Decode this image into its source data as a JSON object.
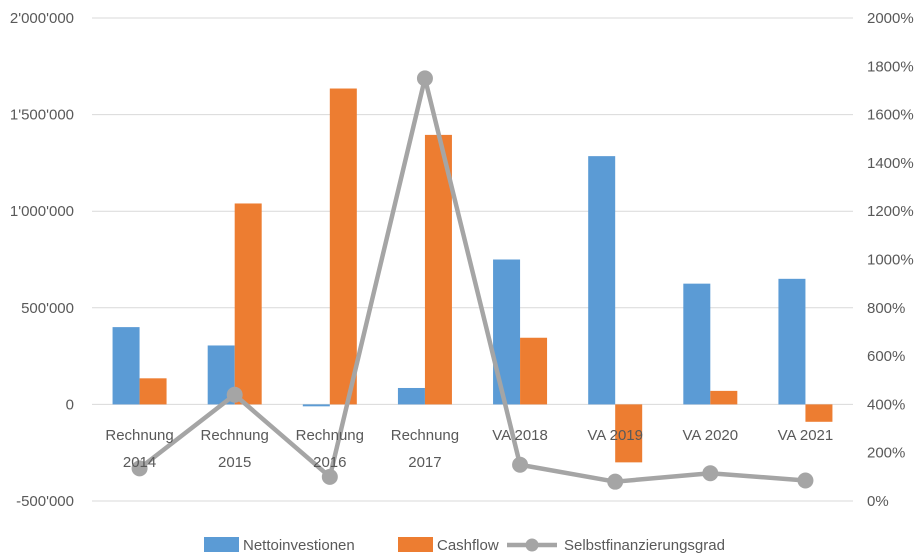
{
  "chart_data": {
    "type": "bar",
    "categories": [
      [
        "Rechnung",
        "2014"
      ],
      [
        "Rechnung",
        "2015"
      ],
      [
        "Rechnung",
        "2016"
      ],
      [
        "Rechnung",
        "2017"
      ],
      [
        "VA 2018"
      ],
      [
        "VA 2019"
      ],
      [
        "VA 2020"
      ],
      [
        "VA 2021"
      ]
    ],
    "series": [
      {
        "name": "Nettoinvestionen",
        "kind": "bar",
        "axis": "left",
        "color": "#5b9bd5",
        "values": [
          400000,
          305000,
          -10000,
          85000,
          750000,
          1285000,
          625000,
          650000
        ]
      },
      {
        "name": "Cashflow",
        "kind": "bar",
        "axis": "left",
        "color": "#ed7d31",
        "values": [
          135000,
          1040000,
          1635000,
          1395000,
          345000,
          -300000,
          70000,
          -90000
        ]
      },
      {
        "name": "Selbstfinanzierungsgrad",
        "kind": "line",
        "axis": "right",
        "color": "#a5a5a5",
        "values": [
          135,
          440,
          100,
          1750,
          150,
          80,
          115,
          85
        ]
      }
    ],
    "left_axis": {
      "min": -500000,
      "max": 2000000,
      "step": 500000,
      "tick_labels": [
        "-500'000",
        "0",
        "500'000",
        "1'000'000",
        "1'500'000",
        "2'000'000"
      ]
    },
    "right_axis": {
      "min": 0,
      "max": 2000,
      "step": 200,
      "tick_labels": [
        "0%",
        "200%",
        "400%",
        "600%",
        "800%",
        "1000%",
        "1200%",
        "1400%",
        "1600%",
        "1800%",
        "2000%"
      ]
    },
    "grid": true,
    "legend": "bottom"
  }
}
